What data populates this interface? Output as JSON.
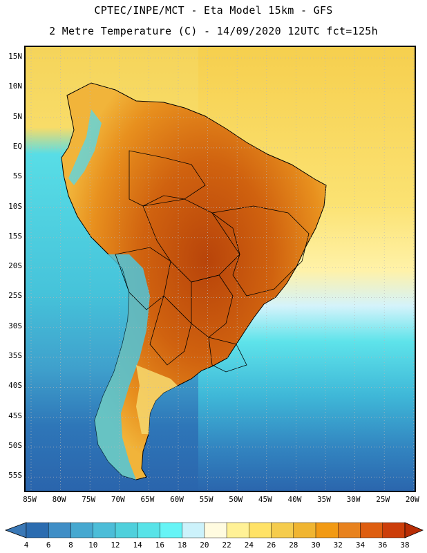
{
  "header": {
    "title_line1": "CPTEC/INPE/MCT -  Eta Model 15km - GFS",
    "title_line2": "2 Metre Temperature (C) - 14/09/2020 12UTC fct=125h"
  },
  "map": {
    "lat_labels": [
      "15N",
      "10N",
      "5N",
      "EQ",
      "5S",
      "10S",
      "15S",
      "20S",
      "25S",
      "30S",
      "35S",
      "40S",
      "45S",
      "50S",
      "55S"
    ],
    "lon_labels": [
      "85W",
      "80W",
      "75W",
      "70W",
      "65W",
      "60W",
      "55W",
      "50W",
      "45W",
      "40W",
      "35W",
      "30W",
      "25W",
      "20W"
    ],
    "variable": "2 Metre Temperature",
    "unit": "C"
  },
  "legend": {
    "levels": [
      "4",
      "6",
      "8",
      "10",
      "12",
      "14",
      "16",
      "18",
      "20",
      "22",
      "24",
      "26",
      "28",
      "30",
      "32",
      "34",
      "36",
      "38"
    ],
    "colors": [
      "#3a78b6",
      "#2b6cb0",
      "#3f8ec6",
      "#46a8d0",
      "#4cbdd8",
      "#4fd0dc",
      "#58e3e8",
      "#66f4f6",
      "#ccf2fb",
      "#fffbe0",
      "#fff196",
      "#ffe266",
      "#f5cc4d",
      "#f0b531",
      "#f29a14",
      "#e8821e",
      "#de5e10",
      "#cc3e0a",
      "#b82d05"
    ]
  }
}
